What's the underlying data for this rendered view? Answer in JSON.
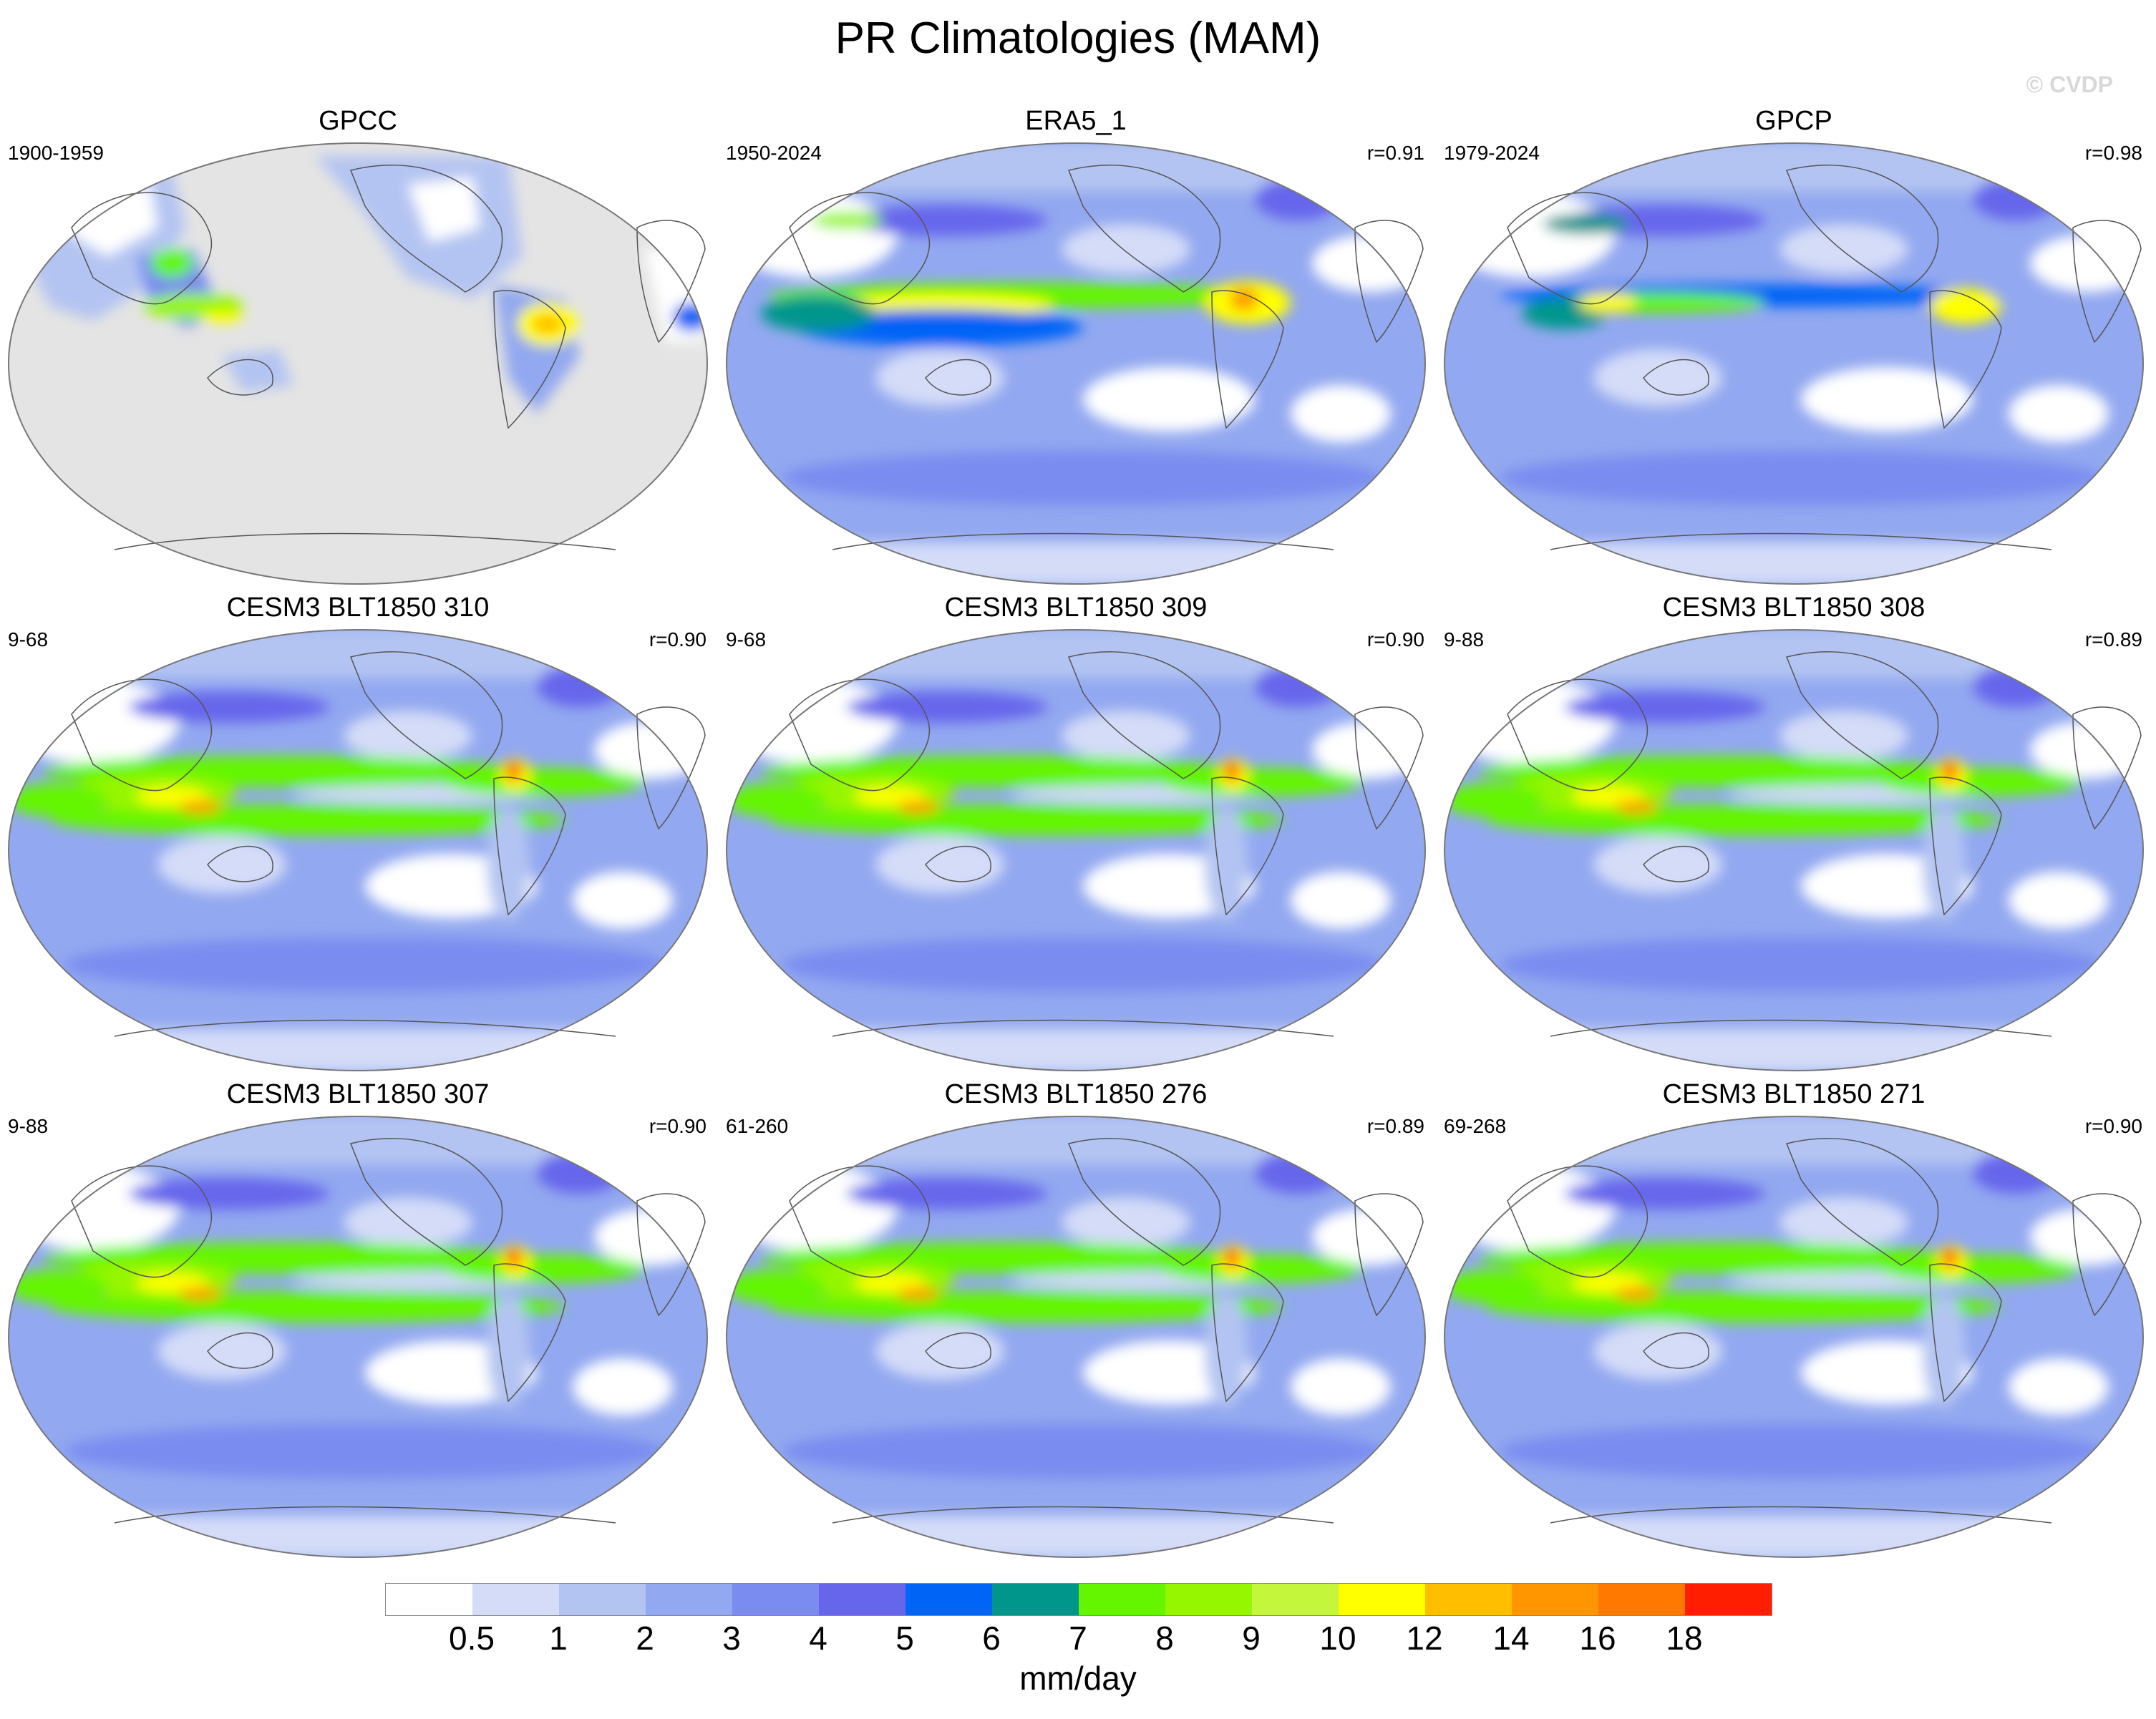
{
  "figure": {
    "title": "PR Climatologies (MAM)",
    "watermark": "© CVDP"
  },
  "panels": [
    {
      "title": "GPCC",
      "years": "1900-1959",
      "corr": "",
      "style": "gpcc"
    },
    {
      "title": "ERA5_1",
      "years": "1950-2024",
      "corr": "r=0.91",
      "style": "era5"
    },
    {
      "title": "GPCP",
      "years": "1979-2024",
      "corr": "r=0.98",
      "style": "gpcp"
    },
    {
      "title": "CESM3 BLT1850 310",
      "years": "9-68",
      "corr": "r=0.90",
      "style": "model"
    },
    {
      "title": "CESM3 BLT1850 309",
      "years": "9-68",
      "corr": "r=0.90",
      "style": "model"
    },
    {
      "title": "CESM3 BLT1850 308",
      "years": "9-88",
      "corr": "r=0.89",
      "style": "model"
    },
    {
      "title": "CESM3 BLT1850 307",
      "years": "9-88",
      "corr": "r=0.90",
      "style": "model"
    },
    {
      "title": "CESM3 BLT1850 276",
      "years": "61-260",
      "corr": "r=0.89",
      "style": "model"
    },
    {
      "title": "CESM3 BLT1850 271",
      "years": "69-268",
      "corr": "r=0.90",
      "style": "model"
    }
  ],
  "colorbar": {
    "colors": [
      "#ffffff",
      "#d4dcf8",
      "#b4c4f2",
      "#92a8f0",
      "#7a8cf0",
      "#6666ec",
      "#0064f6",
      "#00968c",
      "#64f600",
      "#96f600",
      "#c4f63c",
      "#ffff00",
      "#ffbe00",
      "#ff9600",
      "#ff7800",
      "#ff1e00"
    ],
    "labels": [
      "0.5",
      "1",
      "2",
      "3",
      "4",
      "5",
      "6",
      "7",
      "8",
      "9",
      "10",
      "12",
      "14",
      "16",
      "18"
    ],
    "units": "mm/day"
  }
}
